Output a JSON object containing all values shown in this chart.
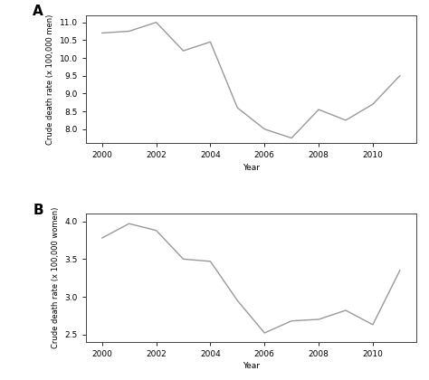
{
  "years": [
    2000,
    2001,
    2002,
    2003,
    2004,
    2005,
    2006,
    2007,
    2008,
    2009,
    2010,
    2011
  ],
  "men_values": [
    10.7,
    10.75,
    11.0,
    10.2,
    10.45,
    8.6,
    8.0,
    7.75,
    8.55,
    8.25,
    8.7,
    9.5
  ],
  "women_values": [
    3.78,
    3.97,
    3.88,
    3.5,
    3.47,
    2.95,
    2.52,
    2.68,
    2.7,
    2.82,
    2.63,
    3.35
  ],
  "men_ylim": [
    7.6,
    11.2
  ],
  "women_ylim": [
    2.4,
    4.1
  ],
  "men_yticks": [
    8.0,
    8.5,
    9.0,
    9.5,
    10.0,
    10.5,
    11.0
  ],
  "women_yticks": [
    2.5,
    3.0,
    3.5,
    4.0
  ],
  "xticks": [
    2000,
    2002,
    2004,
    2006,
    2008,
    2010
  ],
  "xlabel": "Year",
  "men_ylabel": "Crude death rate (x 100,000 men)",
  "women_ylabel": "Crude death rate (x 100,000 women)",
  "panel_a_label": "A",
  "panel_b_label": "B",
  "line_color": "#999999",
  "line_width": 1.0,
  "bg_color": "#ffffff"
}
